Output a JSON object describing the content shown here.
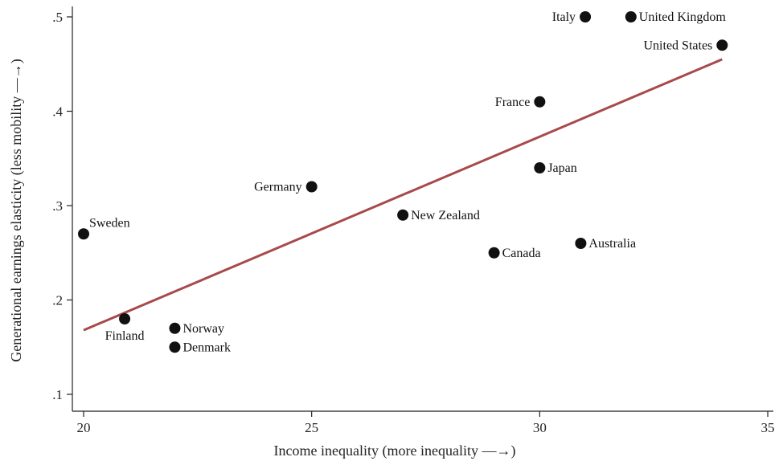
{
  "chart_data": {
    "type": "scatter",
    "title": "",
    "xlabel": "Income inequality (more inequality —→)",
    "ylabel": "Generational earnings elasticity (less mobility —→)",
    "xlim": [
      20,
      35
    ],
    "ylim": [
      0.1,
      0.5
    ],
    "xticks": [
      20,
      25,
      30,
      35
    ],
    "xtick_labels": [
      "20",
      "25",
      "30",
      "35"
    ],
    "yticks": [
      0.1,
      0.2,
      0.3,
      0.4,
      0.5
    ],
    "ytick_labels": [
      ".1",
      ".2",
      ".3",
      ".4",
      ".5"
    ],
    "grid": false,
    "points": [
      {
        "label": "Italy",
        "x": 31.0,
        "y": 0.5,
        "label_side": "left"
      },
      {
        "label": "United Kingdom",
        "x": 32.0,
        "y": 0.5,
        "label_side": "right"
      },
      {
        "label": "United States",
        "x": 34.0,
        "y": 0.47,
        "label_side": "left"
      },
      {
        "label": "France",
        "x": 30.0,
        "y": 0.41,
        "label_side": "left"
      },
      {
        "label": "Japan",
        "x": 30.0,
        "y": 0.34,
        "label_side": "right"
      },
      {
        "label": "Germany",
        "x": 25.0,
        "y": 0.32,
        "label_side": "left"
      },
      {
        "label": "New Zealand",
        "x": 27.0,
        "y": 0.29,
        "label_side": "right"
      },
      {
        "label": "Sweden",
        "x": 20.0,
        "y": 0.27,
        "label_side": "above-right"
      },
      {
        "label": "Canada",
        "x": 29.0,
        "y": 0.25,
        "label_side": "right"
      },
      {
        "label": "Australia",
        "x": 30.9,
        "y": 0.26,
        "label_side": "right"
      },
      {
        "label": "Finland",
        "x": 20.9,
        "y": 0.18,
        "label_side": "below"
      },
      {
        "label": "Norway",
        "x": 22.0,
        "y": 0.17,
        "label_side": "right"
      },
      {
        "label": "Denmark",
        "x": 22.0,
        "y": 0.15,
        "label_side": "right"
      }
    ],
    "fit_line": {
      "x": [
        20,
        34
      ],
      "y": [
        0.168,
        0.455
      ],
      "color": "#a84a4a"
    },
    "point_color": "#111111"
  }
}
